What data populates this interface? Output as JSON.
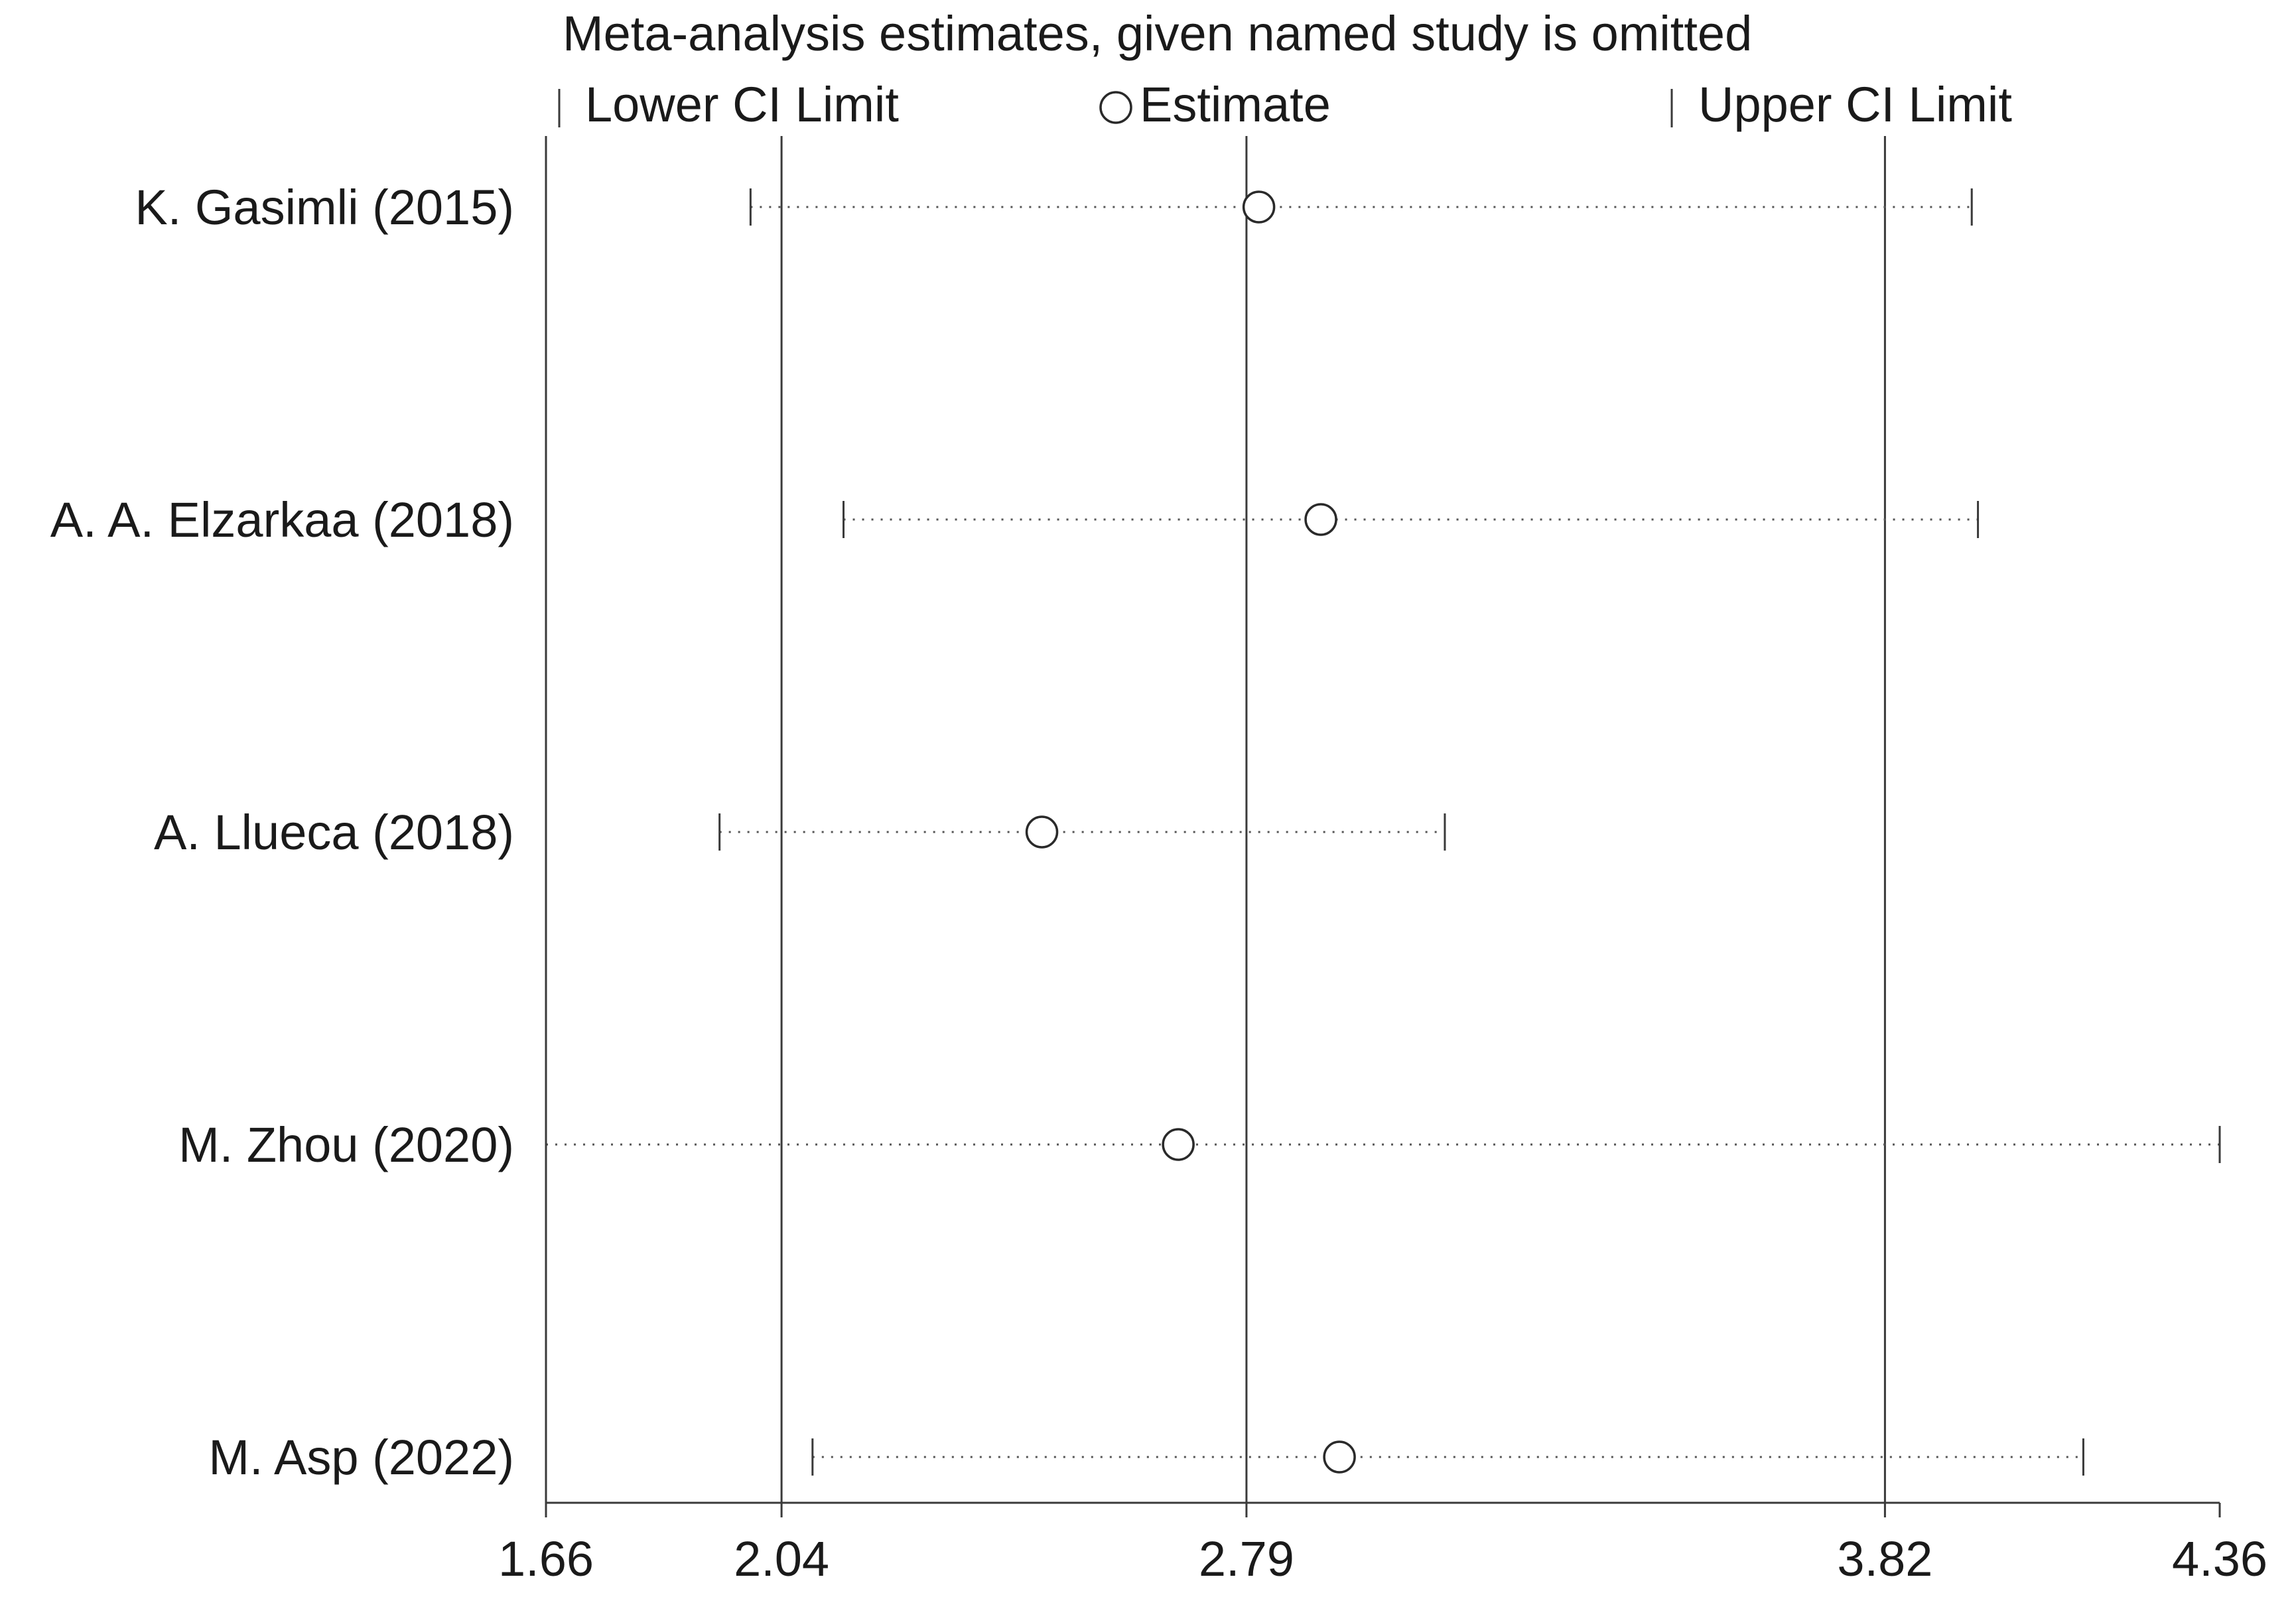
{
  "chart_data": {
    "type": "forest",
    "title": "Meta-analysis estimates, given named study is omitted",
    "legend": {
      "lower": "Lower CI Limit",
      "estimate": "Estimate",
      "upper": "Upper CI Limit"
    },
    "xlim": [
      1.66,
      4.36
    ],
    "ticks": [
      {
        "value": 1.66,
        "label": "1.66"
      },
      {
        "value": 2.04,
        "label": "2.04"
      },
      {
        "value": 2.79,
        "label": "2.79"
      },
      {
        "value": 3.82,
        "label": "3.82"
      },
      {
        "value": 4.36,
        "label": "4.36"
      }
    ],
    "reference_lines": [
      2.04,
      2.79,
      3.82
    ],
    "studies": [
      {
        "label": "K. Gasimli (2015)",
        "lower": 1.99,
        "estimate": 2.81,
        "upper": 3.96
      },
      {
        "label": "A. A. Elzarkaa (2018)",
        "lower": 2.14,
        "estimate": 2.91,
        "upper": 3.97
      },
      {
        "label": "A. Llueca (2018)",
        "lower": 1.94,
        "estimate": 2.46,
        "upper": 3.11
      },
      {
        "label": "M. Zhou (2020)",
        "lower": 1.66,
        "estimate": 2.68,
        "upper": 4.36
      },
      {
        "label": "M. Asp (2022)",
        "lower": 2.09,
        "estimate": 2.94,
        "upper": 4.14
      }
    ]
  }
}
